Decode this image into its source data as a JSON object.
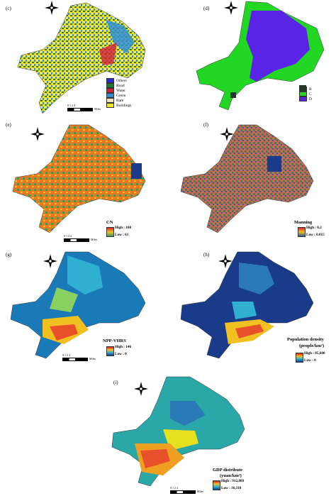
{
  "panels": {
    "c": {
      "label": "(c)",
      "legend": [
        {
          "label": "Others",
          "color": "#2b2bd6"
        },
        {
          "label": "Road",
          "color": "#1d7a2f"
        },
        {
          "label": "Water",
          "color": "#d4203b"
        },
        {
          "label": "Green",
          "color": "#2f8fd6"
        },
        {
          "label": "Bare",
          "color": "#f2e2b8"
        },
        {
          "label": "Buildings",
          "color": "#f1e422"
        }
      ]
    },
    "d": {
      "label": "(d)",
      "legend": [
        {
          "label": "B",
          "color": "#1f3a2a"
        },
        {
          "label": "C",
          "color": "#22d624"
        },
        {
          "label": "D",
          "color": "#5a24e6"
        }
      ]
    },
    "e": {
      "label": "(e)",
      "title": "CN",
      "high": "High : 100",
      "low": "Low : 61"
    },
    "f": {
      "label": "(f)",
      "title": "Manning",
      "high": "High : 0.2",
      "low": "Low : 0.015"
    },
    "g": {
      "label": "(g)",
      "title": "NPP-VIIRS",
      "high": "High : 146",
      "low": "Low : 0"
    },
    "h": {
      "label": "(h)",
      "title": "Population density",
      "title2": "(people/km²)",
      "high": "High : 85,600",
      "low": "Low : 0"
    },
    "i": {
      "label": "(i)",
      "title": "GDP distribute",
      "title2": "(yuan/km²)",
      "high": "High : 912,809",
      "low": "Low : 16,310"
    }
  },
  "scale": {
    "ticks": "0    1    2         4",
    "unit": "Miles"
  },
  "compass": {
    "n": "N",
    "s": "S",
    "e": "E",
    "w": "W"
  },
  "colors": {
    "buildings": "#f1e422",
    "green": "#2f8fd6",
    "road": "#1d7a2f",
    "hsg_c": "#22d624",
    "hsg_d": "#5a24e6",
    "cn_hi": "#e8791d",
    "cn_lo": "#3a9a5a",
    "man_hi": "#c86a4e",
    "man_lo": "#2a8a6a",
    "ramp_lo": "#1a3a8a",
    "ramp_mid": "#2fb0d0",
    "ramp_hi": "#e8502a"
  }
}
